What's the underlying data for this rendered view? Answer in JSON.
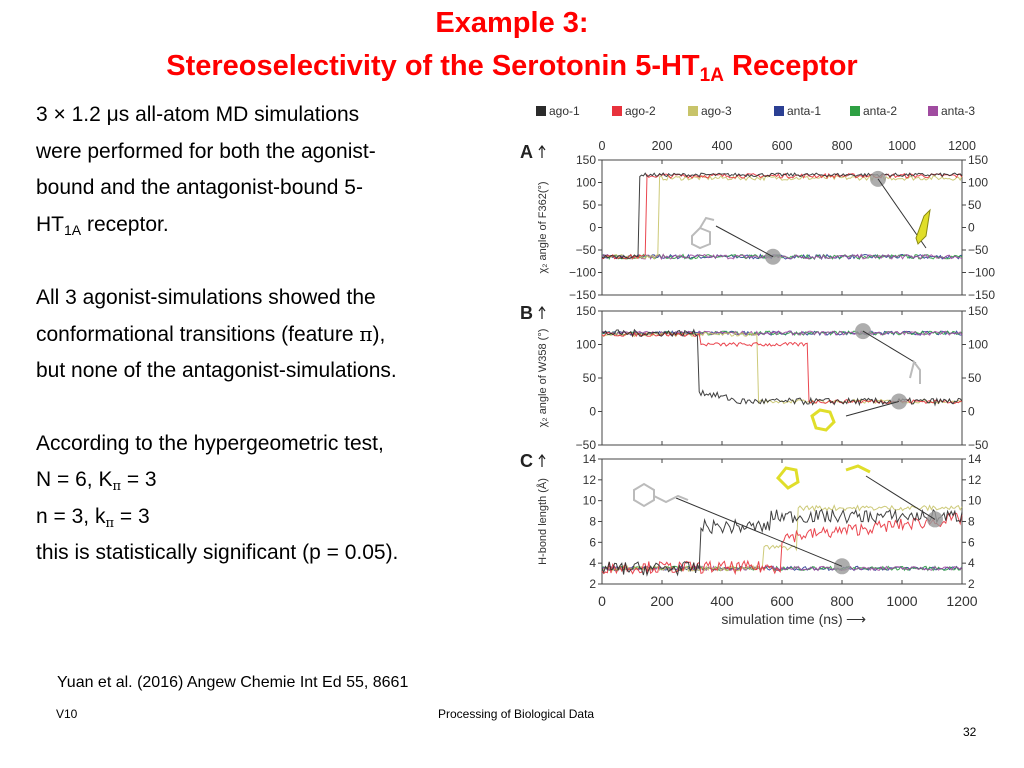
{
  "slide": {
    "title_line1": "Example 3:",
    "title_line2_pre": "Stereoselectivity of the Serotonin 5-HT",
    "title_line2_sub": "1A",
    "title_line2_post": " Receptor",
    "body": {
      "p1_l1": "3 × 1.2 μs all-atom MD simulations",
      "p1_l2": "were performed for both the agonist-",
      "p1_l3": "bound and the antagonist-bound 5-",
      "p1_l4_pre": "HT",
      "p1_l4_sub": "1A",
      "p1_l4_post": " receptor.",
      "p2_l1": "All 3 agonist-simulations showed the",
      "p2_l2_pre": "conformational transitions (feature ",
      "p2_l2_sym": "π",
      "p2_l2_post": "),",
      "p2_l3": "but none of the antagonist-simulations.",
      "p3_l1": "According to the hypergeometric test,",
      "p3_l2_pre": "N = 6, K",
      "p3_l2_sub": "π",
      "p3_l2_post": " = 3",
      "p3_l3_pre": "n = 3, k",
      "p3_l3_sub": "π",
      "p3_l3_post": " = 3",
      "p3_l4": "this is statistically significant (p = 0.05)."
    },
    "citation": "Yuan et al. (2016) Angew Chemie Int Ed 55, 8661",
    "footer_left": "V10",
    "footer_center": "Processing of Biological Data",
    "page_number": "32"
  },
  "figure": {
    "legend": [
      {
        "label": "ago-1",
        "color": "#2b2b2b"
      },
      {
        "label": "ago-2",
        "color": "#e8323c"
      },
      {
        "label": "ago-3",
        "color": "#c8c46a"
      },
      {
        "label": "anta-1",
        "color": "#2b3f93"
      },
      {
        "label": "anta-2",
        "color": "#2ea043"
      },
      {
        "label": "anta-3",
        "color": "#a04ba0"
      }
    ],
    "x_ticks": [
      "0",
      "200",
      "400",
      "600",
      "800",
      "1000",
      "1200"
    ],
    "x_label": "simulation time (ns)",
    "x_arrow": "⟶",
    "panels": [
      {
        "letter": "A",
        "ylabel": "χ₂ angle of F362(°)",
        "ticks": [
          "150",
          "100",
          "50",
          "0",
          "−50",
          "−100",
          "−150"
        ]
      },
      {
        "letter": "B",
        "ylabel": "χ₂ angle of W358 (°)",
        "ticks": [
          "150",
          "100",
          "50",
          "0",
          "−50"
        ]
      },
      {
        "letter": "C",
        "ylabel": "H-bond length (Å)",
        "ticks": [
          "14",
          "12",
          "10",
          "8",
          "6",
          "4",
          "2"
        ]
      }
    ]
  }
}
